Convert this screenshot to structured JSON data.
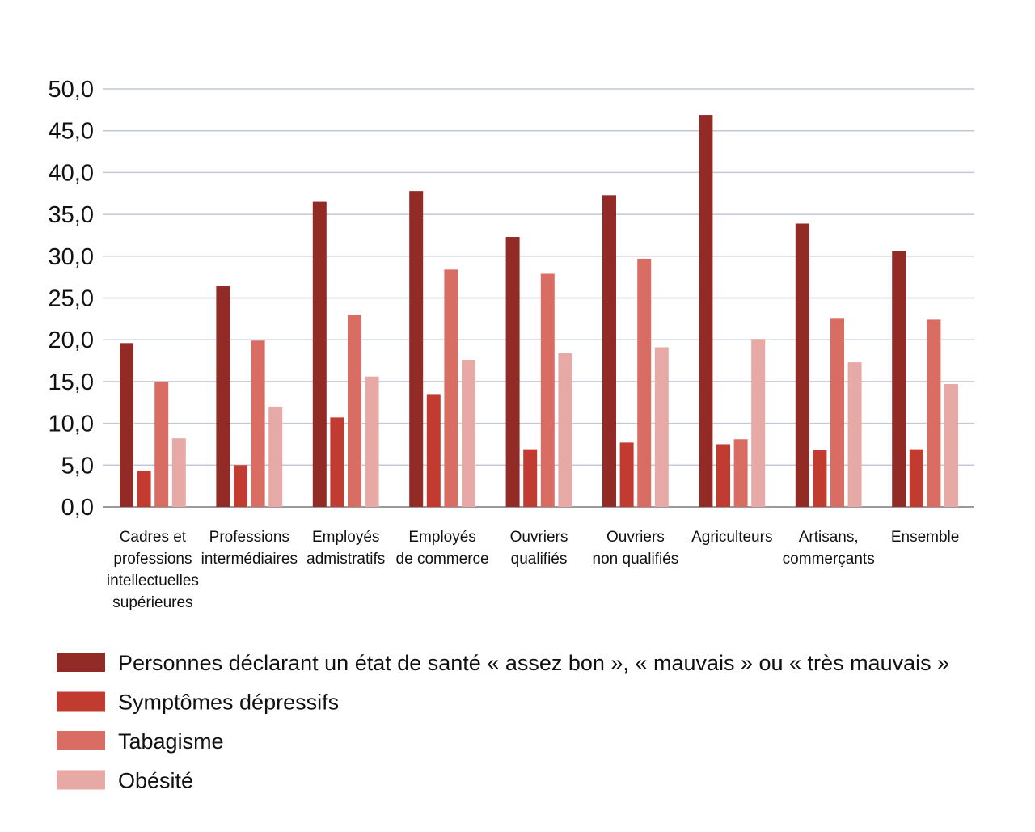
{
  "chart_data": {
    "type": "bar",
    "title": "",
    "xlabel": "",
    "ylabel": "",
    "ylim": [
      0,
      50
    ],
    "yticks": [
      "0,0",
      "5,0",
      "10,0",
      "15,0",
      "20,0",
      "25,0",
      "30,0",
      "35,0",
      "40,0",
      "45,0",
      "50,0"
    ],
    "grid": true,
    "legend_position": "bottom-left",
    "categories": [
      [
        "Cadres et",
        "professions",
        "intellectuelles",
        "supérieures"
      ],
      [
        "Professions",
        "intermédiaires"
      ],
      [
        "Employés",
        "admistratifs"
      ],
      [
        "Employés",
        "de commerce"
      ],
      [
        "Ouvriers",
        "qualifiés"
      ],
      [
        "Ouvriers",
        "non qualifiés"
      ],
      [
        "Agriculteurs"
      ],
      [
        "Artisans,",
        "commerçants"
      ],
      [
        "Ensemble"
      ]
    ],
    "series": [
      {
        "name": "Personnes déclarant un état de santé « assez bon », « mauvais » ou « très mauvais »",
        "color": "#922b26",
        "values": [
          19.6,
          26.4,
          36.5,
          37.8,
          32.3,
          37.3,
          46.9,
          33.9,
          30.6
        ]
      },
      {
        "name": "Symptômes dépressifs",
        "color": "#c23b30",
        "values": [
          4.3,
          5.0,
          10.7,
          13.5,
          6.9,
          7.7,
          7.5,
          6.8,
          6.9
        ]
      },
      {
        "name": "Tabagisme",
        "color": "#da6d63",
        "values": [
          15.0,
          19.9,
          23.0,
          28.4,
          27.9,
          29.7,
          8.1,
          22.6,
          22.4
        ]
      },
      {
        "name": "Obésité",
        "color": "#e6a9a6",
        "values": [
          8.2,
          12.0,
          15.6,
          17.6,
          18.4,
          19.1,
          20.1,
          17.3,
          14.7
        ]
      }
    ],
    "grid_color": "#c4c8d6",
    "axis_color": "#9a9a9a"
  }
}
